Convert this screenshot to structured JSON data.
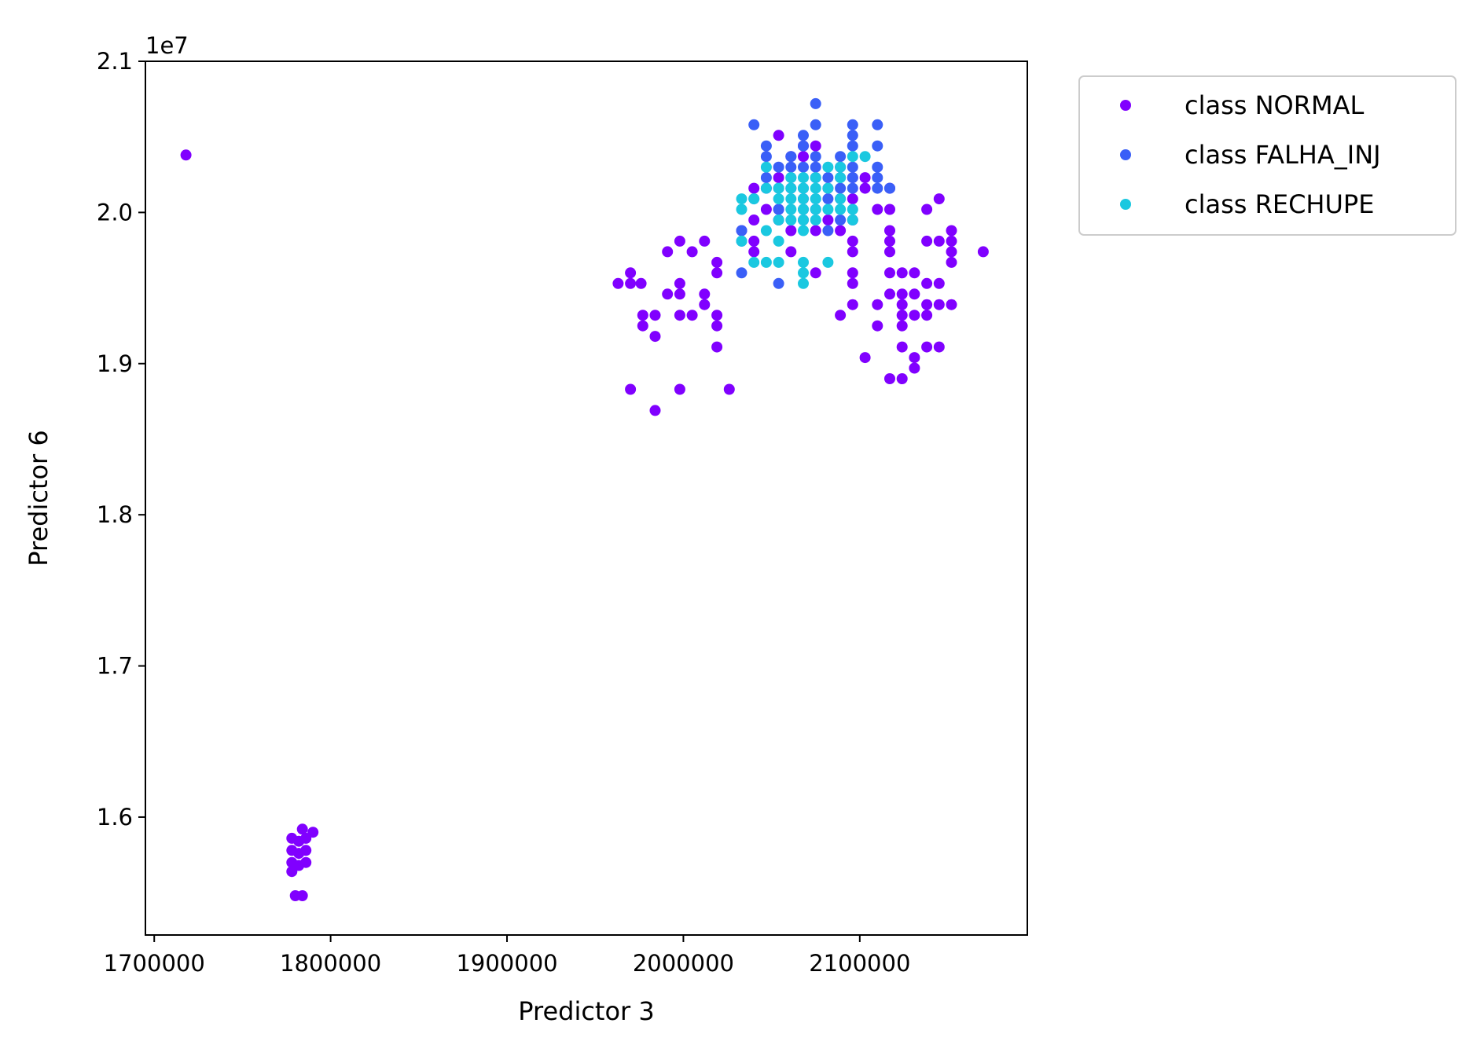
{
  "chart_data": {
    "type": "scatter",
    "xlabel": "Predictor 3",
    "ylabel": "Predictor 6",
    "y_offset_label": "1e7",
    "xlim": [
      1695000,
      2195000
    ],
    "ylim": [
      15220000,
      21000000
    ],
    "x_ticks": [
      1700000,
      1800000,
      1900000,
      2000000,
      2100000
    ],
    "x_tick_labels": [
      "1700000",
      "1800000",
      "1900000",
      "2000000",
      "2100000"
    ],
    "y_ticks": [
      16000000,
      17000000,
      18000000,
      19000000,
      20000000,
      21000000
    ],
    "y_tick_labels": [
      "1.6",
      "1.7",
      "1.8",
      "1.9",
      "2.0",
      "2.1"
    ],
    "grid": false,
    "legend_position": "outside-right-top",
    "series": [
      {
        "name": "class NORMAL",
        "color": "#8000ff",
        "points": [
          [
            1718000,
            20380000
          ],
          [
            1778000,
            15860000
          ],
          [
            1778000,
            15780000
          ],
          [
            1778000,
            15700000
          ],
          [
            1778000,
            15640000
          ],
          [
            1780000,
            15480000
          ],
          [
            1782000,
            15840000
          ],
          [
            1782000,
            15760000
          ],
          [
            1782000,
            15680000
          ],
          [
            1784000,
            15920000
          ],
          [
            1784000,
            15480000
          ],
          [
            1786000,
            15860000
          ],
          [
            1786000,
            15780000
          ],
          [
            1786000,
            15700000
          ],
          [
            1790000,
            15900000
          ],
          [
            1963000,
            19530000
          ],
          [
            1970000,
            19600000
          ],
          [
            1970000,
            19530000
          ],
          [
            1970000,
            18830000
          ],
          [
            1976000,
            19530000
          ],
          [
            1977000,
            19320000
          ],
          [
            1977000,
            19250000
          ],
          [
            1984000,
            19320000
          ],
          [
            1984000,
            19180000
          ],
          [
            1984000,
            18690000
          ],
          [
            1991000,
            19740000
          ],
          [
            1991000,
            19460000
          ],
          [
            1998000,
            19810000
          ],
          [
            1998000,
            19530000
          ],
          [
            1998000,
            19460000
          ],
          [
            1998000,
            19320000
          ],
          [
            1998000,
            18830000
          ],
          [
            2005000,
            19740000
          ],
          [
            2005000,
            19320000
          ],
          [
            2012000,
            19810000
          ],
          [
            2012000,
            19460000
          ],
          [
            2012000,
            19390000
          ],
          [
            2019000,
            19670000
          ],
          [
            2019000,
            19600000
          ],
          [
            2019000,
            19320000
          ],
          [
            2019000,
            19250000
          ],
          [
            2019000,
            19110000
          ],
          [
            2026000,
            18830000
          ],
          [
            2033000,
            19880000
          ],
          [
            2040000,
            20160000
          ],
          [
            2040000,
            19950000
          ],
          [
            2040000,
            19810000
          ],
          [
            2040000,
            19740000
          ],
          [
            2047000,
            20160000
          ],
          [
            2047000,
            20020000
          ],
          [
            2054000,
            20510000
          ],
          [
            2054000,
            20230000
          ],
          [
            2054000,
            20020000
          ],
          [
            2054000,
            19950000
          ],
          [
            2061000,
            20370000
          ],
          [
            2061000,
            20160000
          ],
          [
            2061000,
            19880000
          ],
          [
            2061000,
            19740000
          ],
          [
            2068000,
            20440000
          ],
          [
            2068000,
            20370000
          ],
          [
            2068000,
            20090000
          ],
          [
            2068000,
            19950000
          ],
          [
            2075000,
            20440000
          ],
          [
            2075000,
            20230000
          ],
          [
            2075000,
            20020000
          ],
          [
            2075000,
            19880000
          ],
          [
            2075000,
            19600000
          ],
          [
            2082000,
            20160000
          ],
          [
            2082000,
            19950000
          ],
          [
            2089000,
            20300000
          ],
          [
            2089000,
            20090000
          ],
          [
            2089000,
            19880000
          ],
          [
            2089000,
            19320000
          ],
          [
            2096000,
            20230000
          ],
          [
            2096000,
            20090000
          ],
          [
            2096000,
            19950000
          ],
          [
            2096000,
            19810000
          ],
          [
            2096000,
            19740000
          ],
          [
            2096000,
            19600000
          ],
          [
            2096000,
            19530000
          ],
          [
            2096000,
            19390000
          ],
          [
            2103000,
            20230000
          ],
          [
            2103000,
            20160000
          ],
          [
            2103000,
            19040000
          ],
          [
            2110000,
            20020000
          ],
          [
            2110000,
            19390000
          ],
          [
            2110000,
            19250000
          ],
          [
            2117000,
            20160000
          ],
          [
            2117000,
            20020000
          ],
          [
            2117000,
            19880000
          ],
          [
            2117000,
            19810000
          ],
          [
            2117000,
            19740000
          ],
          [
            2117000,
            19600000
          ],
          [
            2117000,
            19460000
          ],
          [
            2117000,
            18900000
          ],
          [
            2124000,
            19600000
          ],
          [
            2124000,
            19460000
          ],
          [
            2124000,
            19390000
          ],
          [
            2124000,
            19320000
          ],
          [
            2124000,
            19250000
          ],
          [
            2124000,
            19110000
          ],
          [
            2124000,
            18900000
          ],
          [
            2131000,
            19600000
          ],
          [
            2131000,
            19460000
          ],
          [
            2131000,
            19320000
          ],
          [
            2131000,
            19040000
          ],
          [
            2131000,
            18970000
          ],
          [
            2138000,
            20020000
          ],
          [
            2138000,
            19810000
          ],
          [
            2138000,
            19530000
          ],
          [
            2138000,
            19390000
          ],
          [
            2138000,
            19320000
          ],
          [
            2138000,
            19110000
          ],
          [
            2145000,
            20090000
          ],
          [
            2145000,
            19810000
          ],
          [
            2145000,
            19530000
          ],
          [
            2145000,
            19390000
          ],
          [
            2145000,
            19110000
          ],
          [
            2152000,
            19880000
          ],
          [
            2152000,
            19810000
          ],
          [
            2152000,
            19740000
          ],
          [
            2152000,
            19670000
          ],
          [
            2152000,
            19390000
          ],
          [
            2170000,
            19740000
          ]
        ]
      },
      {
        "name": "class FALHA_INJ",
        "color": "#3a5ff7",
        "points": [
          [
            2033000,
            19880000
          ],
          [
            2033000,
            19810000
          ],
          [
            2033000,
            19600000
          ],
          [
            2040000,
            20580000
          ],
          [
            2040000,
            20090000
          ],
          [
            2047000,
            20440000
          ],
          [
            2047000,
            20370000
          ],
          [
            2047000,
            20230000
          ],
          [
            2054000,
            20300000
          ],
          [
            2054000,
            20160000
          ],
          [
            2054000,
            20020000
          ],
          [
            2054000,
            19530000
          ],
          [
            2061000,
            20370000
          ],
          [
            2061000,
            20300000
          ],
          [
            2061000,
            20230000
          ],
          [
            2068000,
            20510000
          ],
          [
            2068000,
            20440000
          ],
          [
            2068000,
            20300000
          ],
          [
            2068000,
            20160000
          ],
          [
            2068000,
            20020000
          ],
          [
            2075000,
            20720000
          ],
          [
            2075000,
            20580000
          ],
          [
            2075000,
            20370000
          ],
          [
            2075000,
            20300000
          ],
          [
            2075000,
            20090000
          ],
          [
            2082000,
            20230000
          ],
          [
            2082000,
            20090000
          ],
          [
            2082000,
            19880000
          ],
          [
            2089000,
            20370000
          ],
          [
            2089000,
            20230000
          ],
          [
            2089000,
            20160000
          ],
          [
            2089000,
            19950000
          ],
          [
            2096000,
            20580000
          ],
          [
            2096000,
            20510000
          ],
          [
            2096000,
            20440000
          ],
          [
            2096000,
            20300000
          ],
          [
            2096000,
            20230000
          ],
          [
            2096000,
            20160000
          ],
          [
            2110000,
            20580000
          ],
          [
            2110000,
            20440000
          ],
          [
            2110000,
            20300000
          ],
          [
            2110000,
            20230000
          ],
          [
            2110000,
            20160000
          ],
          [
            2117000,
            20160000
          ]
        ]
      },
      {
        "name": "class RECHUPE",
        "color": "#1ac8e0",
        "points": [
          [
            2033000,
            20090000
          ],
          [
            2033000,
            20020000
          ],
          [
            2033000,
            19810000
          ],
          [
            2040000,
            20090000
          ],
          [
            2040000,
            19670000
          ],
          [
            2047000,
            20300000
          ],
          [
            2047000,
            20160000
          ],
          [
            2047000,
            19880000
          ],
          [
            2047000,
            19670000
          ],
          [
            2054000,
            20160000
          ],
          [
            2054000,
            20090000
          ],
          [
            2054000,
            19950000
          ],
          [
            2054000,
            19810000
          ],
          [
            2054000,
            19670000
          ],
          [
            2061000,
            20230000
          ],
          [
            2061000,
            20160000
          ],
          [
            2061000,
            20090000
          ],
          [
            2061000,
            20020000
          ],
          [
            2061000,
            19950000
          ],
          [
            2068000,
            20230000
          ],
          [
            2068000,
            20160000
          ],
          [
            2068000,
            20090000
          ],
          [
            2068000,
            20020000
          ],
          [
            2068000,
            19950000
          ],
          [
            2068000,
            19880000
          ],
          [
            2068000,
            19670000
          ],
          [
            2068000,
            19600000
          ],
          [
            2068000,
            19530000
          ],
          [
            2075000,
            20230000
          ],
          [
            2075000,
            20160000
          ],
          [
            2075000,
            20090000
          ],
          [
            2075000,
            20020000
          ],
          [
            2075000,
            19950000
          ],
          [
            2082000,
            20300000
          ],
          [
            2082000,
            20160000
          ],
          [
            2082000,
            20020000
          ],
          [
            2082000,
            19670000
          ],
          [
            2089000,
            20300000
          ],
          [
            2089000,
            20230000
          ],
          [
            2089000,
            20090000
          ],
          [
            2089000,
            20020000
          ],
          [
            2096000,
            20370000
          ],
          [
            2096000,
            20020000
          ],
          [
            2096000,
            19950000
          ],
          [
            2103000,
            20370000
          ]
        ]
      }
    ]
  }
}
